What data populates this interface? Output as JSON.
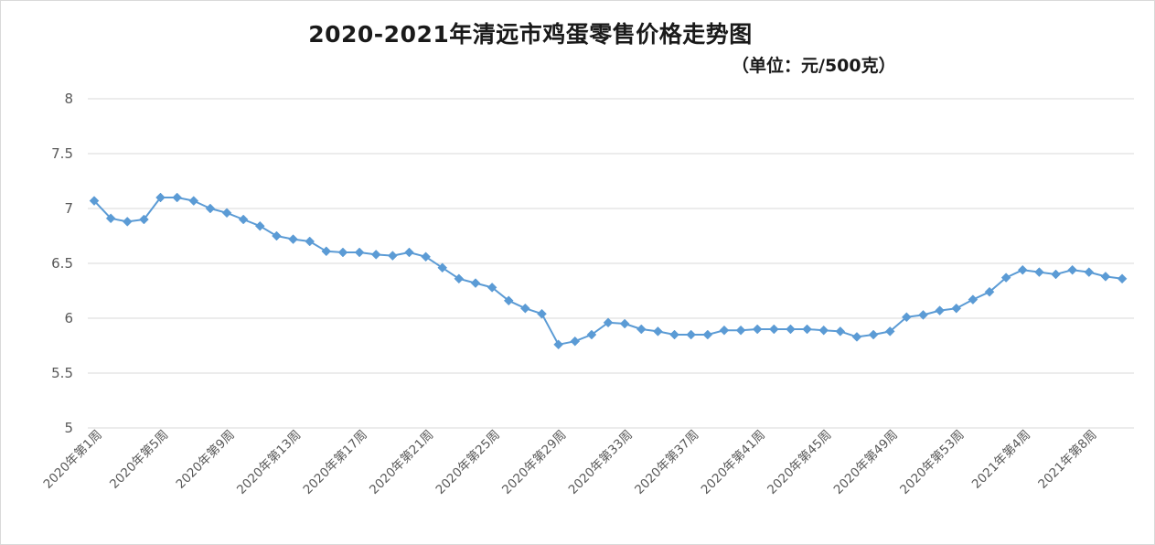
{
  "chart_data": {
    "type": "line",
    "title": "2020-2021年清远市鸡蛋零售价格走势图",
    "subtitle": "（单位：元/500克）",
    "xlabel": "",
    "ylabel": "",
    "ylim": [
      5,
      8
    ],
    "yticks": [
      "5",
      "5.5",
      "6",
      "6.5",
      "7",
      "7.5",
      "8"
    ],
    "grid": true,
    "legend": "none",
    "color": "#5b9bd5",
    "marker": "diamond",
    "x": [
      "2020年第1周",
      "2020年第2周",
      "2020年第3周",
      "2020年第4周",
      "2020年第5周",
      "2020年第6周",
      "2020年第7周",
      "2020年第8周",
      "2020年第9周",
      "2020年第10周",
      "2020年第11周",
      "2020年第12周",
      "2020年第13周",
      "2020年第14周",
      "2020年第15周",
      "2020年第16周",
      "2020年第17周",
      "2020年第18周",
      "2020年第19周",
      "2020年第20周",
      "2020年第21周",
      "2020年第22周",
      "2020年第23周",
      "2020年第24周",
      "2020年第25周",
      "2020年第26周",
      "2020年第27周",
      "2020年第28周",
      "2020年第29周",
      "2020年第30周",
      "2020年第31周",
      "2020年第32周",
      "2020年第33周",
      "2020年第34周",
      "2020年第35周",
      "2020年第36周",
      "2020年第37周",
      "2020年第38周",
      "2020年第39周",
      "2020年第40周",
      "2020年第41周",
      "2020年第42周",
      "2020年第43周",
      "2020年第44周",
      "2020年第45周",
      "2020年第46周",
      "2020年第47周",
      "2020年第48周",
      "2020年第49周",
      "2020年第50周",
      "2020年第51周",
      "2020年第52周",
      "2020年第53周",
      "2021年第1周",
      "2021年第2周",
      "2021年第3周",
      "2021年第4周",
      "2021年第5周",
      "2021年第6周",
      "2021年第7周",
      "2021年第8周",
      "2021年第9周",
      "2021年第10周"
    ],
    "tick_labels": [
      "2020年第1周",
      "2020年第5周",
      "2020年第9周",
      "2020年第13周",
      "2020年第17周",
      "2020年第21周",
      "2020年第25周",
      "2020年第29周",
      "2020年第33周",
      "2020年第37周",
      "2020年第41周",
      "2020年第45周",
      "2020年第49周",
      "2020年第53周",
      "2021年第4周",
      "2021年第8周"
    ],
    "values": [
      7.07,
      6.91,
      6.88,
      6.9,
      7.1,
      7.1,
      7.07,
      7.0,
      6.96,
      6.9,
      6.84,
      6.75,
      6.72,
      6.7,
      6.61,
      6.6,
      6.6,
      6.58,
      6.57,
      6.6,
      6.56,
      6.46,
      6.36,
      6.32,
      6.28,
      6.16,
      6.09,
      6.04,
      5.76,
      5.79,
      5.85,
      5.96,
      5.95,
      5.9,
      5.88,
      5.85,
      5.85,
      5.85,
      5.89,
      5.89,
      5.9,
      5.9,
      5.9,
      5.9,
      5.89,
      5.88,
      5.83,
      5.85,
      5.88,
      6.01,
      6.03,
      6.07,
      6.09,
      6.17,
      6.24,
      6.37,
      6.44,
      6.42,
      6.4,
      6.44,
      6.42,
      6.38,
      6.36
    ]
  }
}
